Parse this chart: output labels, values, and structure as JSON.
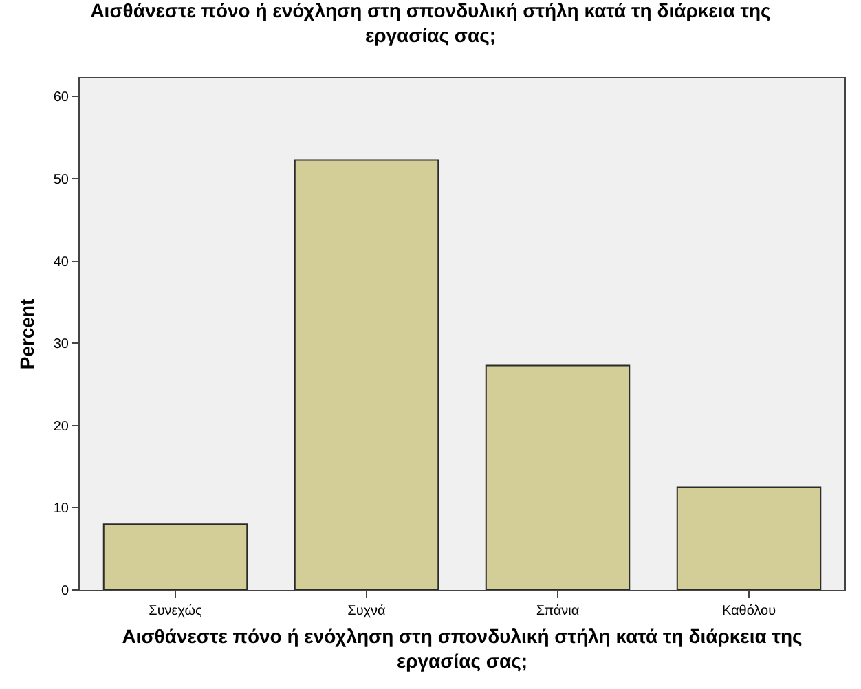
{
  "chart_data": {
    "type": "bar",
    "title": "Αισθάνεστε πόνο ή ενόχληση στη σπονδυλική στήλη κατά τη διάρκεια της\nεργασίας σας;",
    "xlabel": "Αισθάνεστε πόνο ή ενόχληση στη σπονδυλική στήλη κατά τη διάρκεια της\nεργασίας σας;",
    "ylabel": "Percent",
    "categories": [
      "Συνεχώς",
      "Συχνά",
      "Σπάνια",
      "Καθόλου"
    ],
    "values": [
      8.0,
      52.3,
      27.3,
      12.5
    ],
    "color": "#d3ce97",
    "ylim": [
      0,
      62.2
    ],
    "yticks": [
      0,
      10,
      20,
      30,
      40,
      50,
      60
    ],
    "grid": false
  }
}
